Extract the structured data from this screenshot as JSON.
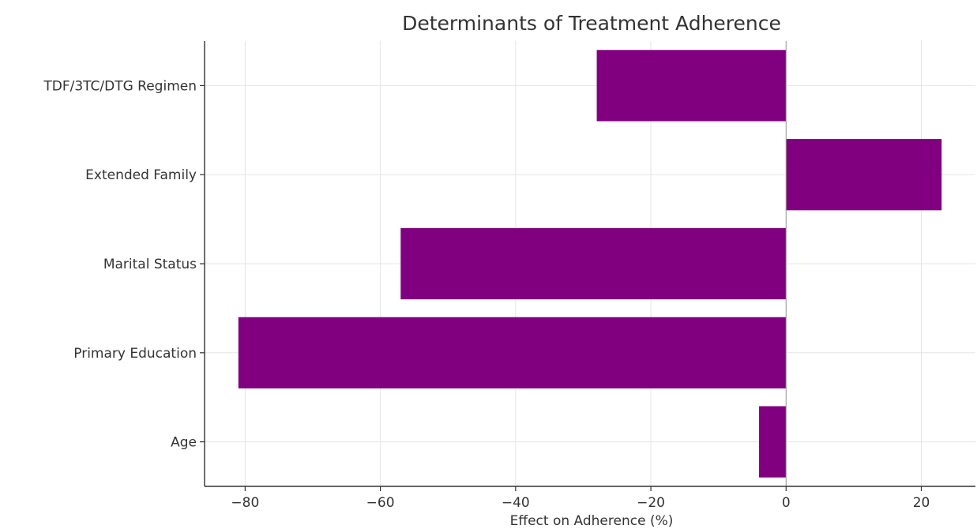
{
  "chart_data": {
    "type": "bar",
    "orientation": "horizontal",
    "title": "Determinants of Treatment Adherence",
    "xlabel": "Effect on Adherence (%)",
    "ylabel": "",
    "categories": [
      "Age",
      "Primary Education",
      "Marital Status",
      "Extended Family",
      "TDF/3TC/DTG Regimen"
    ],
    "values": [
      -4,
      -81,
      -57,
      23,
      -28
    ],
    "xlim": [
      -86,
      28
    ],
    "xticks": [
      -80,
      -60,
      -40,
      -20,
      0,
      20
    ],
    "xtick_labels": [
      "−80",
      "−60",
      "−40",
      "−20",
      "0",
      "20"
    ],
    "grid": true,
    "bar_color": "#800080"
  }
}
